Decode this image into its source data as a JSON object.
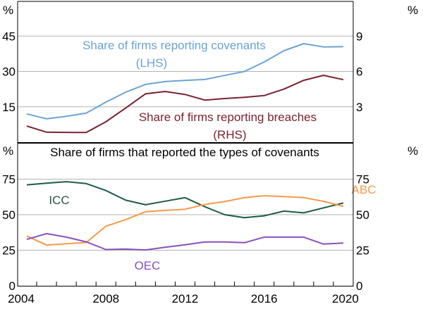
{
  "chart_data": [
    {
      "type": "line",
      "title": "",
      "x": [
        2004,
        2005,
        2006,
        2007,
        2008,
        2009,
        2010,
        2011,
        2012,
        2013,
        2014,
        2015,
        2016,
        2017,
        2018,
        2019,
        2020
      ],
      "left_axis": {
        "unit": "%",
        "ylim": [
          0,
          60
        ],
        "ticks": [
          "15",
          "30",
          "45"
        ],
        "tick_values": [
          15,
          30,
          45
        ]
      },
      "right_axis": {
        "unit": "%",
        "ylim": [
          0,
          12
        ],
        "ticks": [
          "3",
          "6",
          "9"
        ],
        "tick_values": [
          3,
          6,
          9
        ]
      },
      "series": [
        {
          "name": "Share of firms reporting covenants",
          "axis_note": "(LHS)",
          "axis": "left",
          "color": "#6aa3d5",
          "values": [
            12.0,
            9.9,
            11.0,
            12.3,
            17.0,
            21.2,
            24.5,
            25.7,
            26.2,
            26.6,
            28.3,
            30.0,
            34.0,
            38.8,
            41.8,
            40.4,
            40.5
          ]
        },
        {
          "name": "Share of firms reporting breaches",
          "axis_note": "(RHS)",
          "axis": "right",
          "color": "#7a2230",
          "values": [
            1.37,
            0.85,
            0.83,
            0.82,
            1.73,
            2.9,
            4.1,
            4.3,
            4.05,
            3.57,
            3.7,
            3.8,
            3.95,
            4.5,
            5.25,
            5.67,
            5.3
          ]
        }
      ],
      "grid": true
    },
    {
      "type": "line",
      "title": "Share of firms that reported the types of covenants",
      "x": [
        2004,
        2005,
        2006,
        2007,
        2008,
        2009,
        2010,
        2011,
        2012,
        2013,
        2014,
        2015,
        2016,
        2017,
        2018,
        2019,
        2020
      ],
      "left_axis": {
        "unit": "%",
        "ylim": [
          0,
          100
        ],
        "ticks": [
          "0",
          "25",
          "50",
          "75"
        ],
        "tick_values": [
          0,
          25,
          50,
          75
        ]
      },
      "right_axis": {
        "unit": "%",
        "ylim": [
          0,
          100
        ],
        "ticks": [
          "0",
          "25",
          "50",
          "75"
        ],
        "tick_values": [
          0,
          25,
          50,
          75
        ]
      },
      "x_tick_labels": [
        "2004",
        "2008",
        "2012",
        "2016",
        "2020"
      ],
      "x_tick_values": [
        2004,
        2008,
        2012,
        2016,
        2020
      ],
      "series": [
        {
          "name": "ICC",
          "color": "#1e5b44",
          "values": [
            71.0,
            72.2,
            73.2,
            71.9,
            67.0,
            60.2,
            57.0,
            59.5,
            62.0,
            55.6,
            50.0,
            47.9,
            49.2,
            52.5,
            51.3,
            54.8,
            58.2
          ]
        },
        {
          "name": "ABC",
          "color": "#f59a4a",
          "values": [
            35.0,
            28.6,
            29.6,
            30.4,
            41.9,
            46.5,
            52.1,
            53.0,
            53.8,
            57.2,
            59.2,
            62.0,
            63.3,
            62.7,
            62.0,
            59.4,
            55.9
          ]
        },
        {
          "name": "OEC",
          "color": "#8a4fbe",
          "values": [
            32.6,
            36.7,
            34.2,
            30.9,
            25.5,
            25.8,
            25.2,
            27.1,
            28.8,
            30.8,
            30.8,
            30.3,
            34.2,
            34.2,
            34.2,
            29.3,
            30.1
          ]
        }
      ],
      "grid": true
    }
  ]
}
